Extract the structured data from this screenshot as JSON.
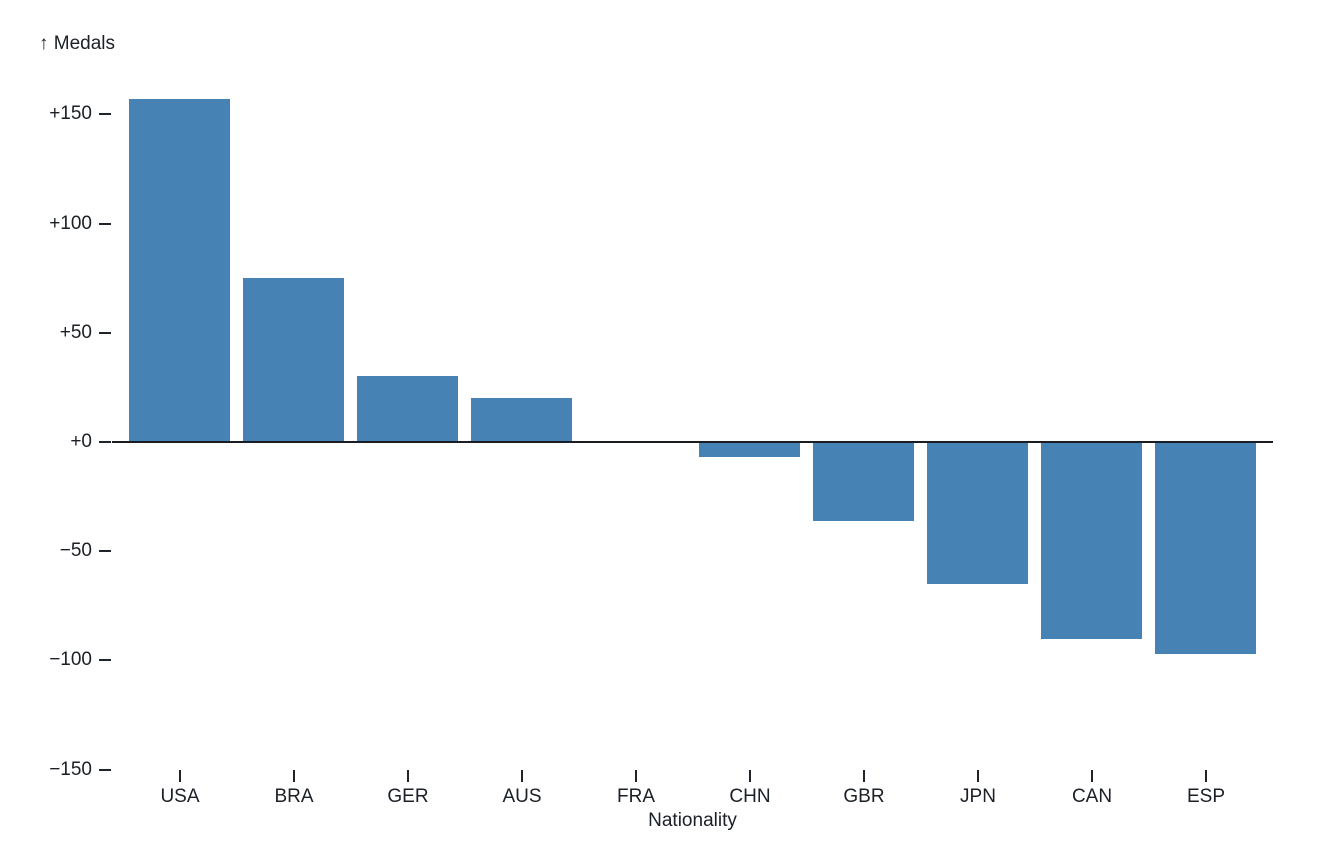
{
  "chart_data": {
    "type": "bar",
    "title": "",
    "ylabel": "↑ Medals",
    "xlabel": "Nationality",
    "categories": [
      "USA",
      "BRA",
      "GER",
      "AUS",
      "FRA",
      "CHN",
      "GBR",
      "JPN",
      "CAN",
      "ESP"
    ],
    "values": [
      157,
      75,
      30,
      20,
      0,
      -7,
      -36,
      -65,
      -90,
      -97
    ],
    "yticks": [
      150,
      100,
      50,
      0,
      -50,
      -100,
      -150
    ],
    "ytick_labels": [
      "+150",
      "+100",
      "+50",
      "+0",
      "−50",
      "−100",
      "−150"
    ],
    "ylim": [
      -150,
      160
    ],
    "grid": false,
    "legend": "none",
    "bar_color": "#4682b4",
    "axis_color": "#1f242b",
    "text_color": "#1b1f26",
    "background_color": "#ffffff"
  }
}
